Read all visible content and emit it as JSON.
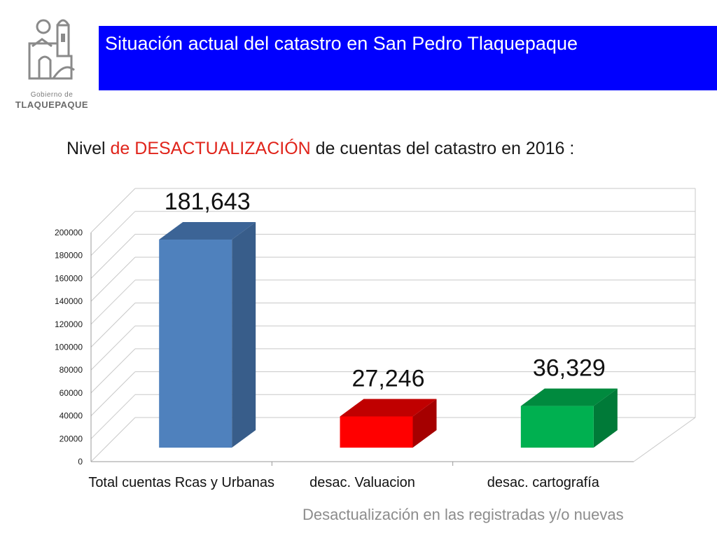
{
  "logo": {
    "line1": "Gobierno de",
    "line2": "TLAQUEPAQUE"
  },
  "header": {
    "title": "Situación actual del catastro en San Pedro Tlaquepaque"
  },
  "subtitle": {
    "part1": "Nivel ",
    "highlight": "de DESACTUALIZACIÓN",
    "part2": "  de cuentas del catastro en 2016 :"
  },
  "chart_data": {
    "type": "bar",
    "three_d": true,
    "categories": [
      "Total cuentas Rcas y Urbanas",
      "desac. Valuacion",
      "desac.  cartografía"
    ],
    "values": [
      181643,
      27246,
      36329
    ],
    "value_labels": [
      "181,643",
      "27,246",
      "36,329"
    ],
    "ylim": [
      0,
      200000
    ],
    "yticks": [
      "0",
      "20000",
      "40000",
      "60000",
      "80000",
      "100000",
      "120000",
      "140000",
      "160000",
      "180000",
      "200000"
    ],
    "grid": true,
    "colors": {
      "front": [
        "#4f81bd",
        "#ff0000",
        "#00b050"
      ],
      "side": [
        "#385d8a",
        "#a50000",
        "#007a38"
      ],
      "top": [
        "#3c6496",
        "#c00000",
        "#008a3e"
      ]
    },
    "xlabel": "",
    "ylabel": ""
  },
  "footer": {
    "note": "Desactualización en las registradas  y/o nuevas"
  }
}
